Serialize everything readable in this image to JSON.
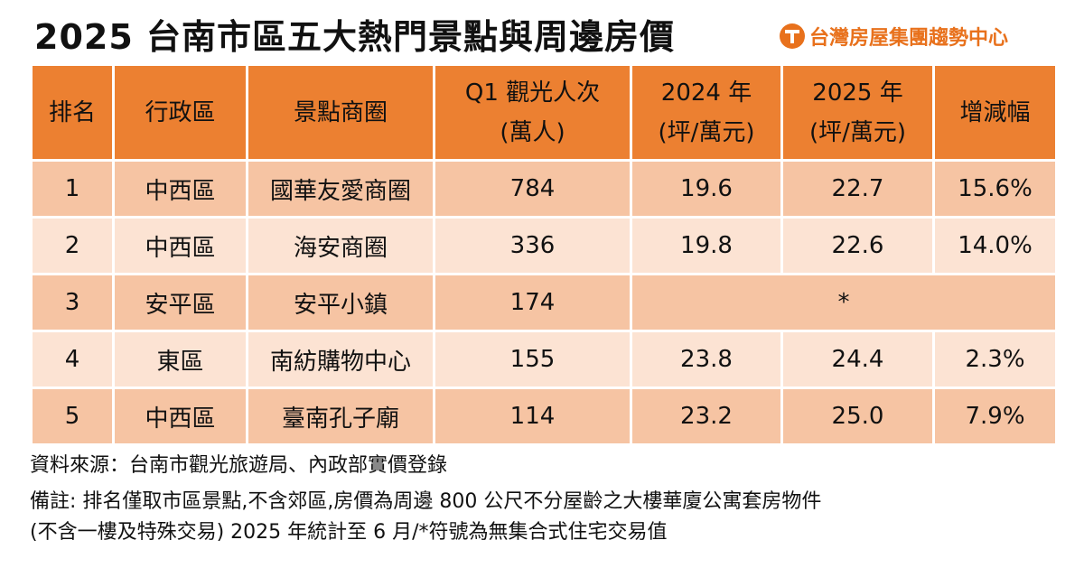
{
  "title": "2025 台南市區五大熱門景點與周邊房價",
  "brand": {
    "name": "台灣房屋集團趨勢中心",
    "logo_icon": "taiwan-realty-logo-icon",
    "color": "#e8711c"
  },
  "colors": {
    "header_bg": "#ec8031",
    "row_dark_bg": "#f6c4a3",
    "row_light_bg": "#fce3d3"
  },
  "table": {
    "headers": [
      {
        "line1": "排名",
        "line2": ""
      },
      {
        "line1": "行政區",
        "line2": ""
      },
      {
        "line1": "景點商圈",
        "line2": ""
      },
      {
        "line1": "Q1 觀光人次",
        "line2": "(萬人)"
      },
      {
        "line1": "2024 年",
        "line2": "(坪/萬元)"
      },
      {
        "line1": "2025 年",
        "line2": "(坪/萬元)"
      },
      {
        "line1": "增減幅",
        "line2": ""
      }
    ],
    "rows": [
      {
        "rank": "1",
        "district": "中西區",
        "spot": "國華友愛商圈",
        "visitors": "784",
        "price_2024": "19.6",
        "price_2025": "22.7",
        "change": "15.6%"
      },
      {
        "rank": "2",
        "district": "中西區",
        "spot": "海安商圈",
        "visitors": "336",
        "price_2024": "19.8",
        "price_2025": "22.6",
        "change": "14.0%"
      },
      {
        "rank": "3",
        "district": "安平區",
        "spot": "安平小鎮",
        "visitors": "174",
        "no_data": "*"
      },
      {
        "rank": "4",
        "district": "東區",
        "spot": "南紡購物中心",
        "visitors": "155",
        "price_2024": "23.8",
        "price_2025": "24.4",
        "change": "2.3%"
      },
      {
        "rank": "5",
        "district": "中西區",
        "spot": "臺南孔子廟",
        "visitors": "114",
        "price_2024": "23.2",
        "price_2025": "25.0",
        "change": "7.9%"
      }
    ]
  },
  "notes": {
    "source": "資料來源：台南市觀光旅遊局、內政部實價登錄",
    "remark_line1": "備註: 排名僅取市區景點,不含郊區,房價為周邊 800 公尺不分屋齡之大樓華廈公寓套房物件",
    "remark_line2": "(不含一樓及特殊交易) 2025 年統計至 6 月/*符號為無集合式住宅交易值"
  }
}
